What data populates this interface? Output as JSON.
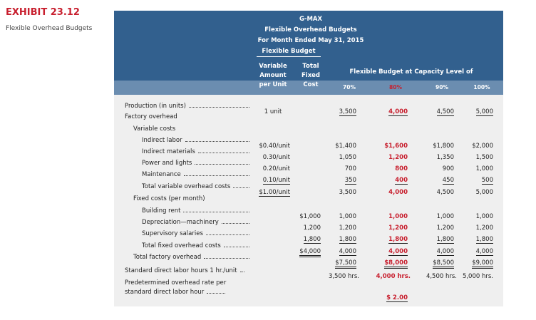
{
  "exhibit": {
    "number": "EXHIBIT 23.12",
    "caption": "Flexible Overhead Budgets"
  },
  "table": {
    "title_lines": [
      "G-MAX",
      "Flexible Overhead Budgets",
      "For Month Ended May 31, 2015",
      "Flexible Budget"
    ],
    "column_headers": [
      [
        "Variable",
        "Amount",
        "per Unit"
      ],
      [
        "Total",
        "Fixed",
        "Cost"
      ]
    ],
    "group_header": "Flexible Budget at Capacity Level of",
    "capacity_levels": [
      "70%",
      "80%",
      "90%",
      "100%"
    ],
    "rows": [
      {
        "label": "Production (in units)",
        "cells": [
          "1 unit",
          null,
          "3,500",
          "4,000",
          "4,500",
          "5,000"
        ]
      },
      {
        "label": "Factory overhead",
        "cells": [
          null,
          null,
          null,
          null,
          null,
          null
        ]
      },
      {
        "label": "Variable costs",
        "cells": [
          null,
          null,
          null,
          null,
          null,
          null
        ]
      },
      {
        "label": "Indirect labor",
        "cells": [
          "$0.40/unit",
          null,
          "$1,400",
          "$1,600",
          "$1,800",
          "$2,000"
        ]
      },
      {
        "label": "Indirect materials",
        "cells": [
          "0.30/unit",
          null,
          "1,050",
          "1,200",
          "1,350",
          "1,500"
        ]
      },
      {
        "label": "Power and lights",
        "cells": [
          "0.20/unit",
          null,
          "700",
          "800",
          "900",
          "1,000"
        ]
      },
      {
        "label": "Maintenance",
        "cells": [
          "0.10/unit",
          null,
          "350",
          "400",
          "450",
          "500"
        ]
      },
      {
        "label": "Total variable overhead costs",
        "cells": [
          "$1.00/unit",
          null,
          "3,500",
          "4,000",
          "4,500",
          "5,000"
        ]
      },
      {
        "label": "Fixed costs (per month)",
        "cells": [
          null,
          null,
          null,
          null,
          null,
          null
        ]
      },
      {
        "label": "Building rent",
        "cells": [
          null,
          "$1,000",
          "1,000",
          "1,000",
          "1,000",
          "1,000"
        ]
      },
      {
        "label": "Depreciation—machinery",
        "cells": [
          null,
          "1,200",
          "1,200",
          "1,200",
          "1,200",
          "1,200"
        ]
      },
      {
        "label": "Supervisory salaries",
        "cells": [
          null,
          "1,800",
          "1,800",
          "1,800",
          "1,800",
          "1,800"
        ]
      },
      {
        "label": "Total fixed overhead costs",
        "cells": [
          null,
          "$4,000",
          "4,000",
          "4,000",
          "4,000",
          "4,000"
        ]
      },
      {
        "label": "Total factory overhead",
        "cells": [
          null,
          null,
          "$7,500",
          "$8,000",
          "$8,500",
          "$9,000"
        ]
      },
      {
        "label": "Standard direct labor hours 1 hr./unit",
        "cells": [
          null,
          null,
          "3,500 hrs.",
          "4,000 hrs.",
          "4,500 hrs.",
          "5,000 hrs."
        ]
      },
      {
        "label": [
          "Predetermined overhead rate per",
          "standard direct labor hour"
        ],
        "cells": [
          null,
          null,
          null,
          "$ 2.00",
          null,
          null
        ]
      }
    ]
  }
}
